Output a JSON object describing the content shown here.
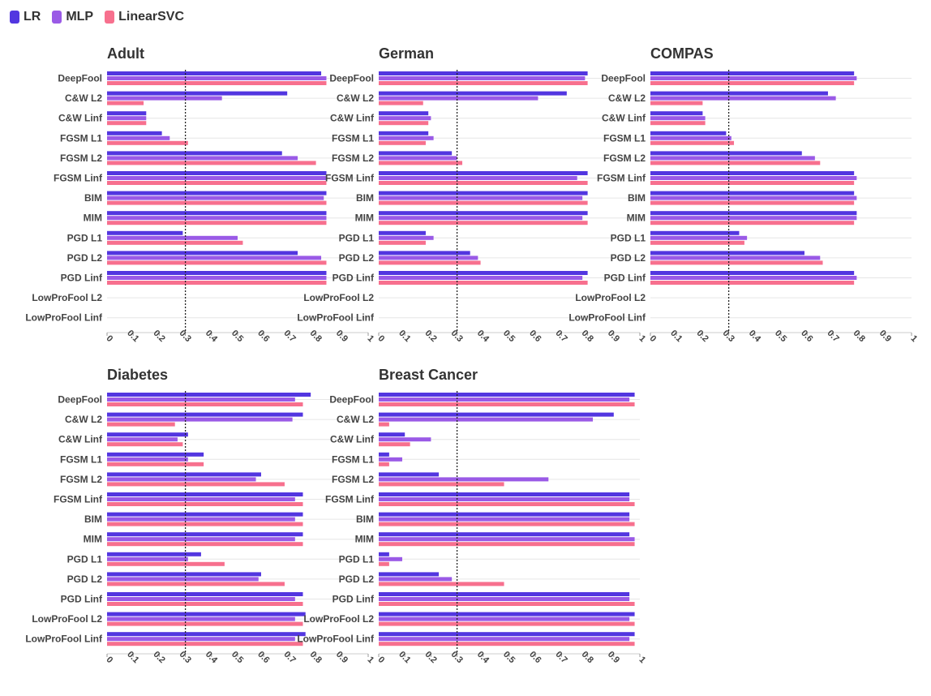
{
  "colors": {
    "LR": "#5236e0",
    "MLP": "#9a5ae6",
    "LinearSVC": "#f7708e"
  },
  "legend": [
    {
      "name": "LR",
      "color": "#5236e0"
    },
    {
      "name": "MLP",
      "color": "#9a5ae6"
    },
    {
      "name": "LinearSVC",
      "color": "#f7708e"
    }
  ],
  "chart_data": [
    {
      "type": "bar",
      "orientation": "horizontal",
      "title": "Adult",
      "categories": [
        "DeepFool",
        "C&W L2",
        "C&W Linf",
        "FGSM L1",
        "FGSM L2",
        "FGSM Linf",
        "BIM",
        "MIM",
        "PGD L1",
        "PGD L2",
        "PGD Linf",
        "LowProFool L2",
        "LowProFool Linf"
      ],
      "xlim": [
        0,
        1
      ],
      "xticks": [
        "0",
        "0.1",
        "0.2",
        "0.3",
        "0.4",
        "0.5",
        "0.6",
        "0.7",
        "0.8",
        "0.9",
        "1"
      ],
      "reference_line": 0.3,
      "series": [
        {
          "name": "LR",
          "values": [
            0.82,
            0.69,
            0.15,
            0.21,
            0.67,
            0.84,
            0.84,
            0.84,
            0.29,
            0.73,
            0.84,
            0,
            0
          ]
        },
        {
          "name": "MLP",
          "values": [
            0.84,
            0.44,
            0.15,
            0.24,
            0.73,
            0.84,
            0.83,
            0.84,
            0.5,
            0.82,
            0.84,
            0,
            0
          ]
        },
        {
          "name": "LinearSVC",
          "values": [
            0.84,
            0.14,
            0.15,
            0.31,
            0.8,
            0.84,
            0.84,
            0.84,
            0.52,
            0.84,
            0.84,
            0,
            0
          ]
        }
      ]
    },
    {
      "type": "bar",
      "orientation": "horizontal",
      "title": "German",
      "categories": [
        "DeepFool",
        "C&W L2",
        "C&W Linf",
        "FGSM L1",
        "FGSM L2",
        "FGSM Linf",
        "BIM",
        "MIM",
        "PGD L1",
        "PGD L2",
        "PGD Linf",
        "LowProFool L2",
        "LowProFool Linf"
      ],
      "xlim": [
        0,
        1
      ],
      "xticks": [
        "0",
        "0.1",
        "0.2",
        "0.3",
        "0.4",
        "0.5",
        "0.6",
        "0.7",
        "0.8",
        "0.9",
        "1"
      ],
      "reference_line": 0.3,
      "series": [
        {
          "name": "LR",
          "values": [
            0.8,
            0.72,
            0.19,
            0.19,
            0.28,
            0.8,
            0.8,
            0.8,
            0.18,
            0.35,
            0.8,
            0,
            0
          ]
        },
        {
          "name": "MLP",
          "values": [
            0.79,
            0.61,
            0.2,
            0.21,
            0.3,
            0.76,
            0.78,
            0.78,
            0.21,
            0.38,
            0.78,
            0,
            0
          ]
        },
        {
          "name": "LinearSVC",
          "values": [
            0.8,
            0.17,
            0.19,
            0.18,
            0.32,
            0.8,
            0.8,
            0.8,
            0.18,
            0.39,
            0.8,
            0,
            0
          ]
        }
      ]
    },
    {
      "type": "bar",
      "orientation": "horizontal",
      "title": "COMPAS",
      "categories": [
        "DeepFool",
        "C&W L2",
        "C&W Linf",
        "FGSM L1",
        "FGSM L2",
        "FGSM Linf",
        "BIM",
        "MIM",
        "PGD L1",
        "PGD L2",
        "PGD Linf",
        "LowProFool L2",
        "LowProFool Linf"
      ],
      "xlim": [
        0,
        1
      ],
      "xticks": [
        "0",
        "0.1",
        "0.2",
        "0.3",
        "0.4",
        "0.5",
        "0.6",
        "0.7",
        "0.8",
        "0.9",
        "1"
      ],
      "reference_line": 0.3,
      "series": [
        {
          "name": "LR",
          "values": [
            0.78,
            0.68,
            0.2,
            0.29,
            0.58,
            0.78,
            0.78,
            0.79,
            0.34,
            0.59,
            0.78,
            0,
            0
          ]
        },
        {
          "name": "MLP",
          "values": [
            0.79,
            0.71,
            0.21,
            0.31,
            0.63,
            0.79,
            0.79,
            0.79,
            0.37,
            0.65,
            0.79,
            0,
            0
          ]
        },
        {
          "name": "LinearSVC",
          "values": [
            0.78,
            0.2,
            0.21,
            0.32,
            0.65,
            0.78,
            0.78,
            0.78,
            0.36,
            0.66,
            0.78,
            0,
            0
          ]
        }
      ]
    },
    {
      "type": "bar",
      "orientation": "horizontal",
      "title": "Diabetes",
      "categories": [
        "DeepFool",
        "C&W L2",
        "C&W Linf",
        "FGSM L1",
        "FGSM L2",
        "FGSM Linf",
        "BIM",
        "MIM",
        "PGD L1",
        "PGD L2",
        "PGD Linf",
        "LowProFool L2",
        "LowProFool Linf"
      ],
      "xlim": [
        0,
        1
      ],
      "xticks": [
        "0",
        "0.1",
        "0.2",
        "0.3",
        "0.4",
        "0.5",
        "0.6",
        "0.7",
        "0.8",
        "0.9",
        "1"
      ],
      "reference_line": 0.3,
      "series": [
        {
          "name": "LR",
          "values": [
            0.78,
            0.75,
            0.31,
            0.37,
            0.59,
            0.75,
            0.75,
            0.75,
            0.36,
            0.59,
            0.75,
            0.76,
            0.76
          ]
        },
        {
          "name": "MLP",
          "values": [
            0.72,
            0.71,
            0.27,
            0.31,
            0.57,
            0.72,
            0.72,
            0.72,
            0.31,
            0.58,
            0.72,
            0.72,
            0.72
          ]
        },
        {
          "name": "LinearSVC",
          "values": [
            0.75,
            0.26,
            0.29,
            0.37,
            0.68,
            0.75,
            0.75,
            0.75,
            0.45,
            0.68,
            0.75,
            0.75,
            0.75
          ]
        }
      ]
    },
    {
      "type": "bar",
      "orientation": "horizontal",
      "title": "Breast Cancer",
      "categories": [
        "DeepFool",
        "C&W L2",
        "C&W Linf",
        "FGSM L1",
        "FGSM L2",
        "FGSM Linf",
        "BIM",
        "MIM",
        "PGD L1",
        "PGD L2",
        "PGD Linf",
        "LowProFool L2",
        "LowProFool Linf"
      ],
      "xlim": [
        0,
        1
      ],
      "xticks": [
        "0",
        "0.1",
        "0.2",
        "0.3",
        "0.4",
        "0.5",
        "0.6",
        "0.7",
        "0.8",
        "0.9",
        "1"
      ],
      "reference_line": 0.3,
      "series": [
        {
          "name": "LR",
          "values": [
            0.98,
            0.9,
            0.1,
            0.04,
            0.23,
            0.96,
            0.96,
            0.96,
            0.04,
            0.23,
            0.96,
            0.98,
            0.98
          ]
        },
        {
          "name": "MLP",
          "values": [
            0.96,
            0.82,
            0.2,
            0.09,
            0.65,
            0.96,
            0.96,
            0.98,
            0.09,
            0.28,
            0.96,
            0.96,
            0.96
          ]
        },
        {
          "name": "LinearSVC",
          "values": [
            0.98,
            0.04,
            0.12,
            0.04,
            0.48,
            0.98,
            0.98,
            0.98,
            0.04,
            0.48,
            0.98,
            0.98,
            0.98
          ]
        }
      ]
    }
  ]
}
